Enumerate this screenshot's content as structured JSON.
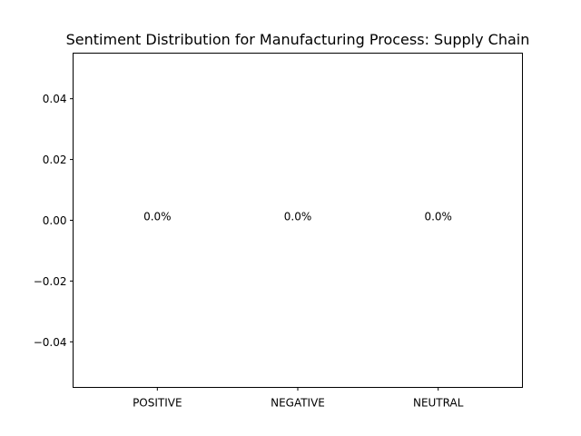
{
  "chart_data": {
    "type": "bar",
    "title": "Sentiment Distribution for Manufacturing Process: Supply Chain",
    "xlabel": "",
    "ylabel": "",
    "categories": [
      "POSITIVE",
      "NEGATIVE",
      "NEUTRAL"
    ],
    "values": [
      0,
      0,
      0
    ],
    "data_labels": [
      "0.0%",
      "0.0%",
      "0.0%"
    ],
    "ylim": [
      -0.055,
      0.055
    ],
    "yticks": [
      -0.04,
      -0.02,
      0.0,
      0.02,
      0.04
    ],
    "ytick_labels": [
      "−0.04",
      "−0.02",
      "0.00",
      "0.02",
      "0.04"
    ],
    "grid": false,
    "legend": "none",
    "colors": {
      "bar": "#1f77b4",
      "axes": "#000000",
      "background": "#ffffff"
    }
  }
}
